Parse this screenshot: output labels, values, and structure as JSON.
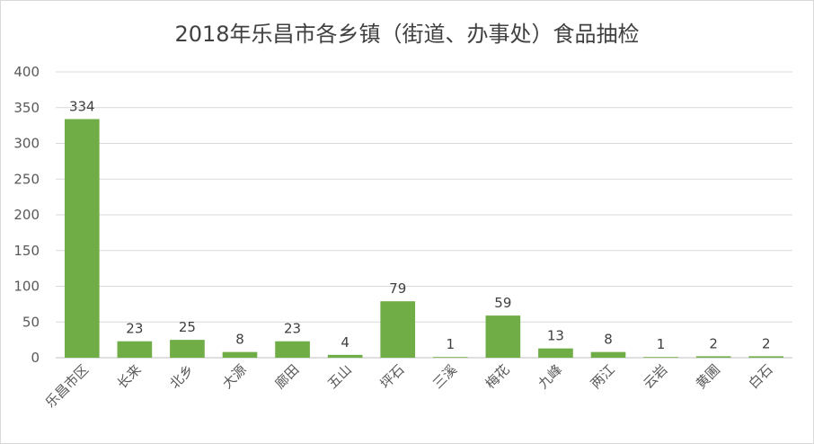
{
  "chart_data": {
    "type": "bar",
    "title": "2018年乐昌市各乡镇（街道、办事处）食品抽检",
    "categories": [
      "乐昌市区",
      "长来",
      "北乡",
      "大源",
      "廊田",
      "五山",
      "坪石",
      "三溪",
      "梅花",
      "九峰",
      "两江",
      "云岩",
      "黄圃",
      "白石"
    ],
    "values": [
      334,
      23,
      25,
      8,
      23,
      4,
      79,
      1,
      59,
      13,
      8,
      1,
      2,
      2
    ],
    "ylim": [
      0,
      400
    ],
    "yticks": [
      0,
      50,
      100,
      150,
      200,
      250,
      300,
      350,
      400
    ],
    "bar_color": "#70ad47",
    "grid": true,
    "legend": "none"
  }
}
